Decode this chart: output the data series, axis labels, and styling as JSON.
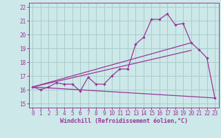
{
  "xlabel": "Windchill (Refroidissement éolien,°C)",
  "background_color": "#cce8e8",
  "grid_color": "#aacccc",
  "line_color": "#993399",
  "x_ticks": [
    0,
    1,
    2,
    3,
    4,
    5,
    6,
    7,
    8,
    9,
    10,
    11,
    12,
    13,
    14,
    15,
    16,
    17,
    18,
    19,
    20,
    21,
    22,
    23
  ],
  "ylim": [
    14.7,
    22.3
  ],
  "xlim": [
    -0.5,
    23.5
  ],
  "y_ticks": [
    15,
    16,
    17,
    18,
    19,
    20,
    21,
    22
  ],
  "line1_x": [
    0,
    1,
    2,
    3,
    4,
    5,
    6,
    7,
    8,
    9,
    10,
    11,
    12,
    13,
    14,
    15,
    16,
    17,
    18,
    19,
    20,
    21,
    22,
    23
  ],
  "line1_y": [
    16.2,
    16.0,
    16.2,
    16.5,
    16.4,
    16.4,
    15.9,
    16.9,
    16.4,
    16.4,
    17.0,
    17.5,
    17.5,
    19.3,
    19.8,
    21.1,
    21.1,
    21.5,
    20.7,
    20.8,
    19.4,
    18.9,
    18.3,
    15.4
  ],
  "line2_x": [
    0,
    20
  ],
  "line2_y": [
    16.2,
    19.4
  ],
  "line3_x": [
    0,
    20
  ],
  "line3_y": [
    16.2,
    18.85
  ],
  "line4_x": [
    0,
    23
  ],
  "line4_y": [
    16.2,
    15.4
  ],
  "tick_fontsize": 5.5,
  "xlabel_fontsize": 6.0
}
